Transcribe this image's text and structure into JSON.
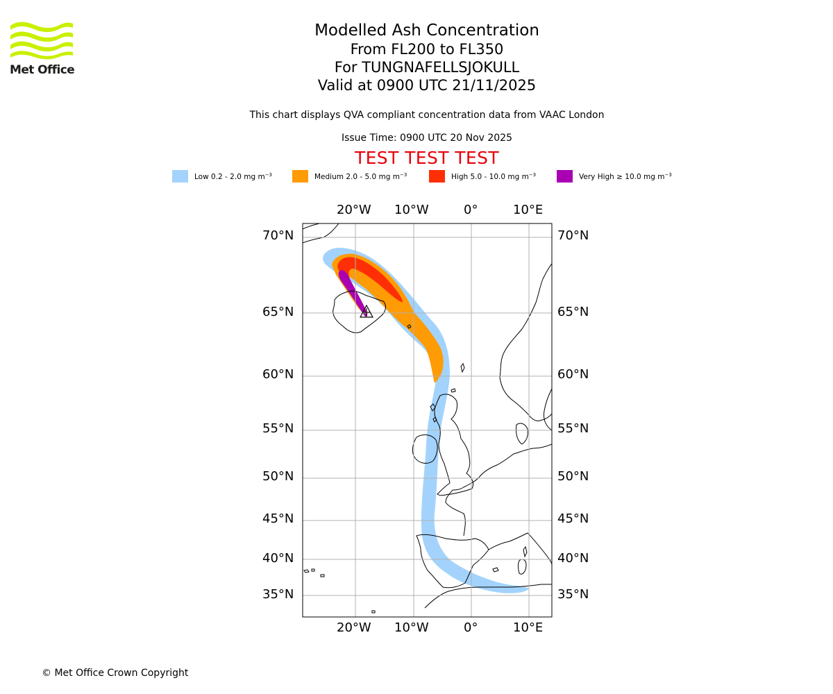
{
  "logo": {
    "text": "Met Office",
    "brand_color": "#c8f000"
  },
  "title": {
    "main": "Modelled Ash Concentration",
    "levels": "From FL200 to FL350",
    "volcano": "For TUNGNAFELLSJOKULL",
    "valid": "Valid at 0900 UTC 21/11/2025"
  },
  "notes": {
    "compliance": "This chart displays QVA compliant concentration data from VAAC London",
    "issue_time": "Issue Time: 0900 UTC 20 Nov 2025",
    "test_banner": "TEST TEST TEST"
  },
  "legend": [
    {
      "name": "low",
      "label": "Low 0.2 - 2.0 mg m",
      "exponent": "−3",
      "color": "#a3d3fc"
    },
    {
      "name": "medium",
      "label": "Medium 2.0 - 5.0 mg m",
      "exponent": "−3",
      "color": "#ff9b05"
    },
    {
      "name": "high",
      "label": "High 5.0 - 10.0 mg m",
      "exponent": "−3",
      "color": "#ff2f05"
    },
    {
      "name": "very-high",
      "label": "Very High  ≥  10.0 mg m",
      "exponent": "−3",
      "color": "#a900b2"
    }
  ],
  "map": {
    "lon_range": [
      -29,
      14
    ],
    "lat_range": [
      33,
      71
    ],
    "lon_ticks": [
      {
        "lon": -20,
        "label": "20°W"
      },
      {
        "lon": -10,
        "label": "10°W"
      },
      {
        "lon": 0,
        "label": "0°"
      },
      {
        "lon": 10,
        "label": "10°E"
      }
    ],
    "lat_ticks": [
      {
        "lat": 70,
        "label": "70°N"
      },
      {
        "lat": 65,
        "label": "65°N"
      },
      {
        "lat": 60,
        "label": "60°N"
      },
      {
        "lat": 55,
        "label": "55°N"
      },
      {
        "lat": 50,
        "label": "50°N"
      },
      {
        "lat": 45,
        "label": "45°N"
      },
      {
        "lat": 40,
        "label": "40°N"
      },
      {
        "lat": 35,
        "label": "35°N"
      }
    ],
    "volcano": {
      "name": "Tungnafellsjokull",
      "lon": -18,
      "lat": 64.7
    },
    "gridline_color": "#b0b0b0",
    "coastline_color": "#000000"
  },
  "copyright": "© Met Office Crown Copyright"
}
